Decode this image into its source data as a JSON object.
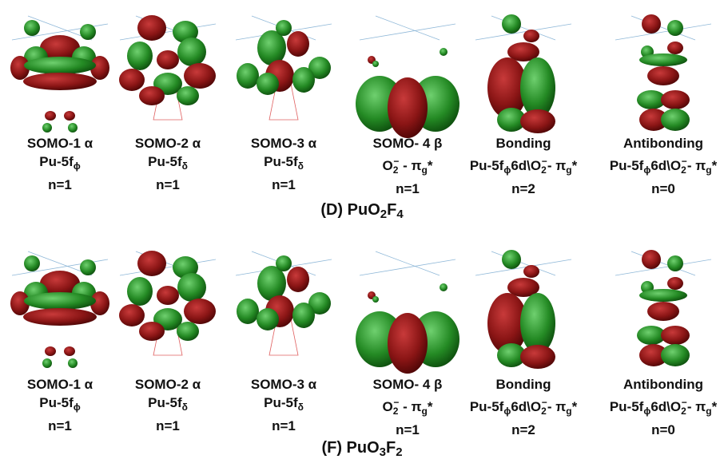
{
  "panels": [
    {
      "caption": [
        {
          "text": "(D)  PuO"
        },
        {
          "text": "2",
          "sub": true
        },
        {
          "text": "F"
        },
        {
          "text": "4",
          "sub": true
        }
      ],
      "orbitals": [
        {
          "name": "SOMO-1 α",
          "orbital": [
            {
              "text": "Pu-5f"
            },
            {
              "text": "ϕ",
              "sub": true
            }
          ],
          "n": "n=1"
        },
        {
          "name": "SOMO-2 α",
          "orbital": [
            {
              "text": "Pu-5f"
            },
            {
              "text": "δ",
              "sub": true
            }
          ],
          "n": "n=1"
        },
        {
          "name": "SOMO-3 α",
          "orbital": [
            {
              "text": "Pu-5f"
            },
            {
              "text": "δ",
              "sub": true
            }
          ],
          "n": "n=1"
        },
        {
          "name": "SOMO- 4 β",
          "orbital": [
            {
              "text": "O"
            },
            {
              "text": "2",
              "sub": true
            },
            {
              "text": "−",
              "sup": true
            },
            {
              "text": " - π"
            },
            {
              "text": "g",
              "sub": true
            },
            {
              "text": "*"
            }
          ],
          "n": "n=1"
        },
        {
          "name": "Bonding",
          "orbital": [
            {
              "text": "Pu-5f"
            },
            {
              "text": "ϕ",
              "sub": true
            },
            {
              "text": "6d\\O"
            },
            {
              "text": "2",
              "sub": true
            },
            {
              "text": "−",
              "sup": true
            },
            {
              "text": "- π"
            },
            {
              "text": "g",
              "sub": true
            },
            {
              "text": "*"
            }
          ],
          "n": "n=2"
        },
        {
          "name": "Antibonding",
          "orbital": [
            {
              "text": "Pu-5f"
            },
            {
              "text": "ϕ",
              "sub": true
            },
            {
              "text": "6d\\O"
            },
            {
              "text": "2",
              "sub": true
            },
            {
              "text": "−",
              "sup": true
            },
            {
              "text": "- π"
            },
            {
              "text": "g",
              "sub": true
            },
            {
              "text": "*"
            }
          ],
          "n": "n=0"
        }
      ]
    },
    {
      "caption": [
        {
          "text": "(F)  PuO"
        },
        {
          "text": "3",
          "sub": true
        },
        {
          "text": "F"
        },
        {
          "text": "2",
          "sub": true
        }
      ],
      "orbitals": [
        {
          "name": "SOMO-1 α",
          "orbital": [
            {
              "text": "Pu-5f"
            },
            {
              "text": "ϕ",
              "sub": true
            }
          ],
          "n": "n=1"
        },
        {
          "name": "SOMO-2 α",
          "orbital": [
            {
              "text": "Pu-5f"
            },
            {
              "text": "δ",
              "sub": true
            }
          ],
          "n": "n=1"
        },
        {
          "name": "SOMO-3 α",
          "orbital": [
            {
              "text": "Pu-5f"
            },
            {
              "text": "δ",
              "sub": true
            }
          ],
          "n": "n=1"
        },
        {
          "name": "SOMO- 4 β",
          "orbital": [
            {
              "text": "O"
            },
            {
              "text": "2",
              "sub": true
            },
            {
              "text": "−",
              "sup": true
            },
            {
              "text": " - π"
            },
            {
              "text": "g",
              "sub": true
            },
            {
              "text": "*"
            }
          ],
          "n": "n=1"
        },
        {
          "name": "Bonding",
          "orbital": [
            {
              "text": "Pu-5f"
            },
            {
              "text": "ϕ",
              "sub": true
            },
            {
              "text": "6d\\O"
            },
            {
              "text": "2",
              "sub": true
            },
            {
              "text": "−",
              "sup": true
            },
            {
              "text": "- π"
            },
            {
              "text": "g",
              "sub": true
            },
            {
              "text": "*"
            }
          ],
          "n": "n=2"
        },
        {
          "name": "Antibonding",
          "orbital": [
            {
              "text": "Pu-5f"
            },
            {
              "text": "ϕ",
              "sub": true
            },
            {
              "text": "6d\\O"
            },
            {
              "text": "2",
              "sub": true
            },
            {
              "text": "−",
              "sup": true
            },
            {
              "text": "- π"
            },
            {
              "text": "g",
              "sub": true
            },
            {
              "text": "*"
            }
          ],
          "n": "n=0"
        }
      ]
    }
  ]
}
